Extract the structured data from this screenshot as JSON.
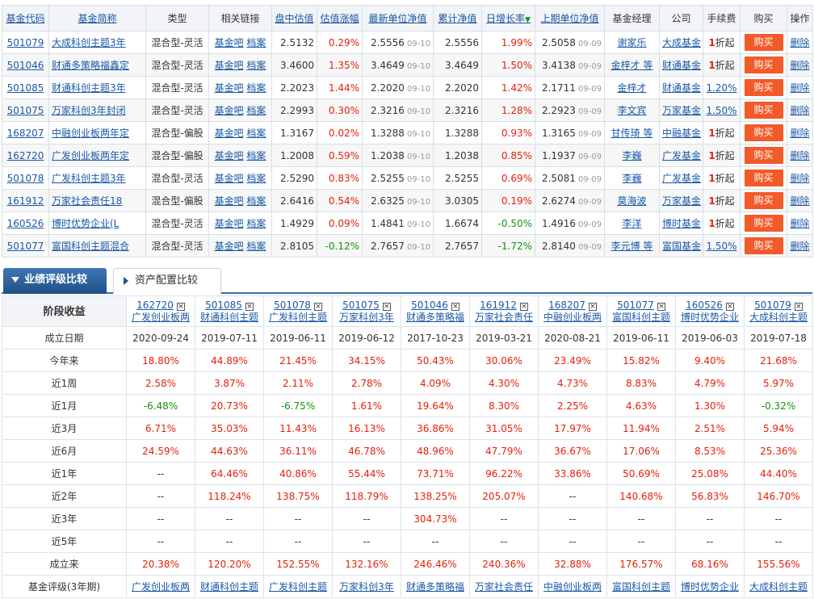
{
  "fund_table": {
    "headers": [
      "基金代码",
      "基金简称",
      "类型",
      "相关链接",
      "盘中估值",
      "估值涨幅",
      "最新单位净值",
      "累计净值",
      "日增长率",
      "上期单位净值",
      "基金经理",
      "公司",
      "手续费",
      "购买",
      "操作"
    ],
    "link_labels": [
      "基金吧",
      "档案"
    ],
    "buy_label": "购买",
    "delete_label": "删除",
    "sort_indicator": "▼",
    "rows": [
      {
        "code": "501079",
        "name": "大成科创主题3年",
        "type": "混合型-灵活",
        "est": "2.5132",
        "est_chg": "0.29%",
        "est_dir": "up",
        "nav": "2.5556",
        "nav_date": "09-10",
        "acc_nav": "2.5556",
        "daily": "1.99%",
        "daily_dir": "up",
        "prev_nav": "2.5058",
        "prev_date": "09-09",
        "manager": "谢家乐",
        "company": "大成基金",
        "fee": "1折起",
        "fee_type": "discount"
      },
      {
        "code": "501046",
        "name": "财通多策略福鑫定",
        "type": "混合型-灵活",
        "est": "3.4600",
        "est_chg": "1.35%",
        "est_dir": "up",
        "nav": "3.4649",
        "nav_date": "09-10",
        "acc_nav": "3.4649",
        "daily": "1.50%",
        "daily_dir": "up",
        "prev_nav": "3.4138",
        "prev_date": "09-09",
        "manager": "金梓才 等",
        "company": "财通基金",
        "fee": "1折起",
        "fee_type": "discount"
      },
      {
        "code": "501085",
        "name": "财通科创主题3年",
        "type": "混合型-灵活",
        "est": "2.2023",
        "est_chg": "1.44%",
        "est_dir": "up",
        "nav": "2.2020",
        "nav_date": "09-10",
        "acc_nav": "2.2020",
        "daily": "1.42%",
        "daily_dir": "up",
        "prev_nav": "2.1711",
        "prev_date": "09-09",
        "manager": "金梓才",
        "company": "财通基金",
        "fee": "1.20%",
        "fee_type": "link"
      },
      {
        "code": "501075",
        "name": "万家科创3年封闭",
        "type": "混合型-灵活",
        "est": "2.2993",
        "est_chg": "0.30%",
        "est_dir": "up",
        "nav": "2.3216",
        "nav_date": "09-10",
        "acc_nav": "2.3216",
        "daily": "1.28%",
        "daily_dir": "up",
        "prev_nav": "2.2923",
        "prev_date": "09-09",
        "manager": "李文宾",
        "company": "万家基金",
        "fee": "1.50%",
        "fee_type": "link"
      },
      {
        "code": "168207",
        "name": "中融创业板两年定",
        "type": "混合型-偏股",
        "est": "1.3167",
        "est_chg": "0.02%",
        "est_dir": "up",
        "nav": "1.3288",
        "nav_date": "09-10",
        "acc_nav": "1.3288",
        "daily": "0.93%",
        "daily_dir": "up",
        "prev_nav": "1.3165",
        "prev_date": "09-09",
        "manager": "甘传琦 等",
        "company": "中融基金",
        "fee": "1折起",
        "fee_type": "discount"
      },
      {
        "code": "162720",
        "name": "广发创业板两年定",
        "type": "混合型-偏股",
        "est": "1.2008",
        "est_chg": "0.59%",
        "est_dir": "up",
        "nav": "1.2038",
        "nav_date": "09-10",
        "acc_nav": "1.2038",
        "daily": "0.85%",
        "daily_dir": "up",
        "prev_nav": "1.1937",
        "prev_date": "09-09",
        "manager": "李巍",
        "company": "广发基金",
        "fee": "1折起",
        "fee_type": "discount"
      },
      {
        "code": "501078",
        "name": "广发科创主题3年",
        "type": "混合型-灵活",
        "est": "2.5290",
        "est_chg": "0.83%",
        "est_dir": "up",
        "nav": "2.5255",
        "nav_date": "09-10",
        "acc_nav": "2.5255",
        "daily": "0.69%",
        "daily_dir": "up",
        "prev_nav": "2.5081",
        "prev_date": "09-09",
        "manager": "李巍",
        "company": "广发基金",
        "fee": "1折起",
        "fee_type": "discount"
      },
      {
        "code": "161912",
        "name": "万家社会责任18",
        "type": "混合型-偏股",
        "est": "2.6416",
        "est_chg": "0.54%",
        "est_dir": "up",
        "nav": "2.6325",
        "nav_date": "09-10",
        "acc_nav": "3.0305",
        "daily": "0.19%",
        "daily_dir": "up",
        "prev_nav": "2.6274",
        "prev_date": "09-09",
        "manager": "莫海波",
        "company": "万家基金",
        "fee": "1折起",
        "fee_type": "discount"
      },
      {
        "code": "160526",
        "name": "博时优势企业(L",
        "type": "混合型-灵活",
        "est": "1.4929",
        "est_chg": "0.09%",
        "est_dir": "up",
        "nav": "1.4841",
        "nav_date": "09-10",
        "acc_nav": "1.6674",
        "daily": "-0.50%",
        "daily_dir": "down",
        "prev_nav": "1.4916",
        "prev_date": "09-09",
        "manager": "李洋",
        "company": "博时基金",
        "fee": "1折起",
        "fee_type": "discount"
      },
      {
        "code": "501077",
        "name": "富国科创主题混合",
        "type": "混合型-灵活",
        "est": "2.8105",
        "est_chg": "-0.12%",
        "est_dir": "down",
        "nav": "2.7657",
        "nav_date": "09-10",
        "acc_nav": "2.7657",
        "daily": "-1.72%",
        "daily_dir": "down",
        "prev_nav": "2.8140",
        "prev_date": "09-09",
        "manager": "李元博 等",
        "company": "富国基金",
        "fee": "1.50%",
        "fee_type": "link"
      }
    ]
  },
  "tabs": {
    "active": "业绩评级比较",
    "inactive": "资产配置比较"
  },
  "comparison": {
    "corner_label": "阶段收益",
    "remove_glyph": "×",
    "funds": [
      {
        "code": "162720",
        "name": "广发创业板两"
      },
      {
        "code": "501085",
        "name": "财通科创主题"
      },
      {
        "code": "501078",
        "name": "广发科创主题"
      },
      {
        "code": "501075",
        "name": "万家科创3年"
      },
      {
        "code": "501046",
        "name": "财通多策略福"
      },
      {
        "code": "161912",
        "name": "万家社会责任"
      },
      {
        "code": "168207",
        "name": "中融创业板两"
      },
      {
        "code": "501077",
        "name": "富国科创主题"
      },
      {
        "code": "160526",
        "name": "博时优势企业"
      },
      {
        "code": "501079",
        "name": "大成科创主题"
      }
    ],
    "rows": [
      {
        "label": "成立日期",
        "kind": "date",
        "values": [
          "2020-09-24",
          "2019-07-11",
          "2019-06-11",
          "2019-06-12",
          "2017-10-23",
          "2019-03-21",
          "2020-08-21",
          "2019-06-11",
          "2019-06-03",
          "2019-07-18"
        ]
      },
      {
        "label": "今年来",
        "kind": "pct",
        "values": [
          "18.80%",
          "44.89%",
          "21.45%",
          "34.15%",
          "50.43%",
          "30.06%",
          "23.49%",
          "15.82%",
          "9.40%",
          "21.68%"
        ]
      },
      {
        "label": "近1周",
        "kind": "pct",
        "values": [
          "2.58%",
          "3.87%",
          "2.11%",
          "2.78%",
          "4.09%",
          "4.30%",
          "4.73%",
          "8.83%",
          "4.79%",
          "5.97%"
        ]
      },
      {
        "label": "近1月",
        "kind": "pct",
        "values": [
          "-6.48%",
          "20.73%",
          "-6.75%",
          "1.61%",
          "19.64%",
          "8.30%",
          "2.25%",
          "4.63%",
          "1.30%",
          "-0.32%"
        ]
      },
      {
        "label": "近3月",
        "kind": "pct",
        "values": [
          "6.71%",
          "35.03%",
          "11.43%",
          "16.13%",
          "36.86%",
          "31.05%",
          "17.97%",
          "11.94%",
          "2.51%",
          "5.94%"
        ]
      },
      {
        "label": "近6月",
        "kind": "pct",
        "values": [
          "24.59%",
          "44.63%",
          "36.11%",
          "46.78%",
          "48.96%",
          "47.79%",
          "36.67%",
          "17.06%",
          "8.53%",
          "25.36%"
        ]
      },
      {
        "label": "近1年",
        "kind": "pct",
        "values": [
          "--",
          "64.46%",
          "40.86%",
          "55.44%",
          "73.71%",
          "96.22%",
          "33.86%",
          "50.69%",
          "25.08%",
          "44.40%"
        ]
      },
      {
        "label": "近2年",
        "kind": "pct",
        "values": [
          "--",
          "118.24%",
          "138.75%",
          "118.79%",
          "138.25%",
          "205.07%",
          "--",
          "140.68%",
          "56.83%",
          "146.70%"
        ]
      },
      {
        "label": "近3年",
        "kind": "pct",
        "values": [
          "--",
          "--",
          "--",
          "--",
          "304.73%",
          "--",
          "--",
          "--",
          "--",
          "--"
        ]
      },
      {
        "label": "近5年",
        "kind": "pct",
        "values": [
          "--",
          "--",
          "--",
          "--",
          "--",
          "--",
          "--",
          "--",
          "--",
          "--"
        ]
      },
      {
        "label": "成立来",
        "kind": "pct",
        "values": [
          "20.38%",
          "120.20%",
          "152.55%",
          "132.16%",
          "246.46%",
          "240.36%",
          "32.88%",
          "176.57%",
          "68.16%",
          "155.56%"
        ]
      },
      {
        "label": "基金评级(3年期)",
        "kind": "rating",
        "values": [
          "广发创业板两",
          "财通科创主题",
          "广发科创主题",
          "万家科创3年",
          "财通多策略福",
          "万家社会责任",
          "中融创业板两",
          "富国科创主题",
          "博时优势企业",
          "大成科创主题"
        ]
      }
    ]
  },
  "colors": {
    "up": "#e4200c",
    "down": "#12940f",
    "link": "#1a58a8",
    "buy_button": "#f25a29",
    "tab_active": "#2b5f98"
  }
}
